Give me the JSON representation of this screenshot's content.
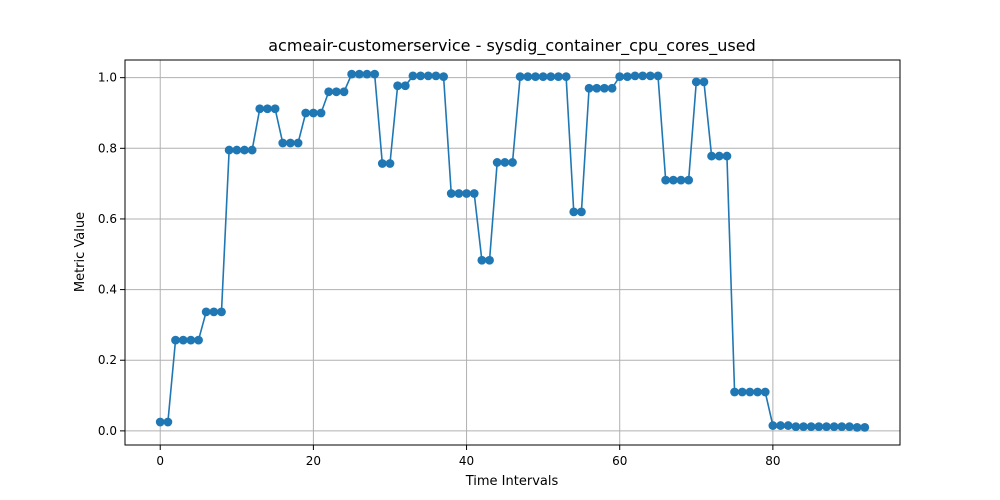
{
  "chart_data": {
    "type": "line",
    "title": "acmeair-customerservice - sysdig_container_cpu_cores_used",
    "xlabel": "Time Intervals",
    "ylabel": "Metric Value",
    "xlim": [
      -4.6,
      96.6
    ],
    "ylim": [
      -0.04,
      1.05
    ],
    "xticks": [
      0,
      20,
      40,
      60,
      80
    ],
    "yticks": [
      0.0,
      0.2,
      0.4,
      0.6,
      0.8,
      1.0
    ],
    "xtick_labels": [
      "0",
      "20",
      "40",
      "60",
      "80"
    ],
    "ytick_labels": [
      "0.0",
      "0.2",
      "0.4",
      "0.6",
      "0.8",
      "1.0"
    ],
    "grid": true,
    "color": "#1f77b4",
    "marker": "circle",
    "series": [
      {
        "values": [
          0.025,
          0.025,
          0.257,
          0.257,
          0.257,
          0.257,
          0.337,
          0.337,
          0.337,
          0.795,
          0.795,
          0.795,
          0.795,
          0.912,
          0.912,
          0.912,
          0.815,
          0.815,
          0.815,
          0.9,
          0.9,
          0.9,
          0.96,
          0.96,
          0.96,
          1.01,
          1.01,
          1.01,
          1.01,
          0.757,
          0.757,
          0.977,
          0.977,
          1.005,
          1.005,
          1.005,
          1.005,
          1.003,
          0.672,
          0.672,
          0.672,
          0.672,
          0.483,
          0.483,
          0.76,
          0.76,
          0.76,
          1.003,
          1.003,
          1.003,
          1.003,
          1.003,
          1.003,
          1.003,
          0.62,
          0.62,
          0.97,
          0.97,
          0.97,
          0.97,
          1.003,
          1.003,
          1.005,
          1.005,
          1.005,
          1.005,
          0.71,
          0.71,
          0.71,
          0.71,
          0.988,
          0.988,
          0.778,
          0.778,
          0.778,
          0.11,
          0.11,
          0.11,
          0.11,
          0.11,
          0.015,
          0.015,
          0.015,
          0.012,
          0.012,
          0.012,
          0.012,
          0.012,
          0.012,
          0.012,
          0.012,
          0.01,
          0.01
        ]
      }
    ]
  }
}
